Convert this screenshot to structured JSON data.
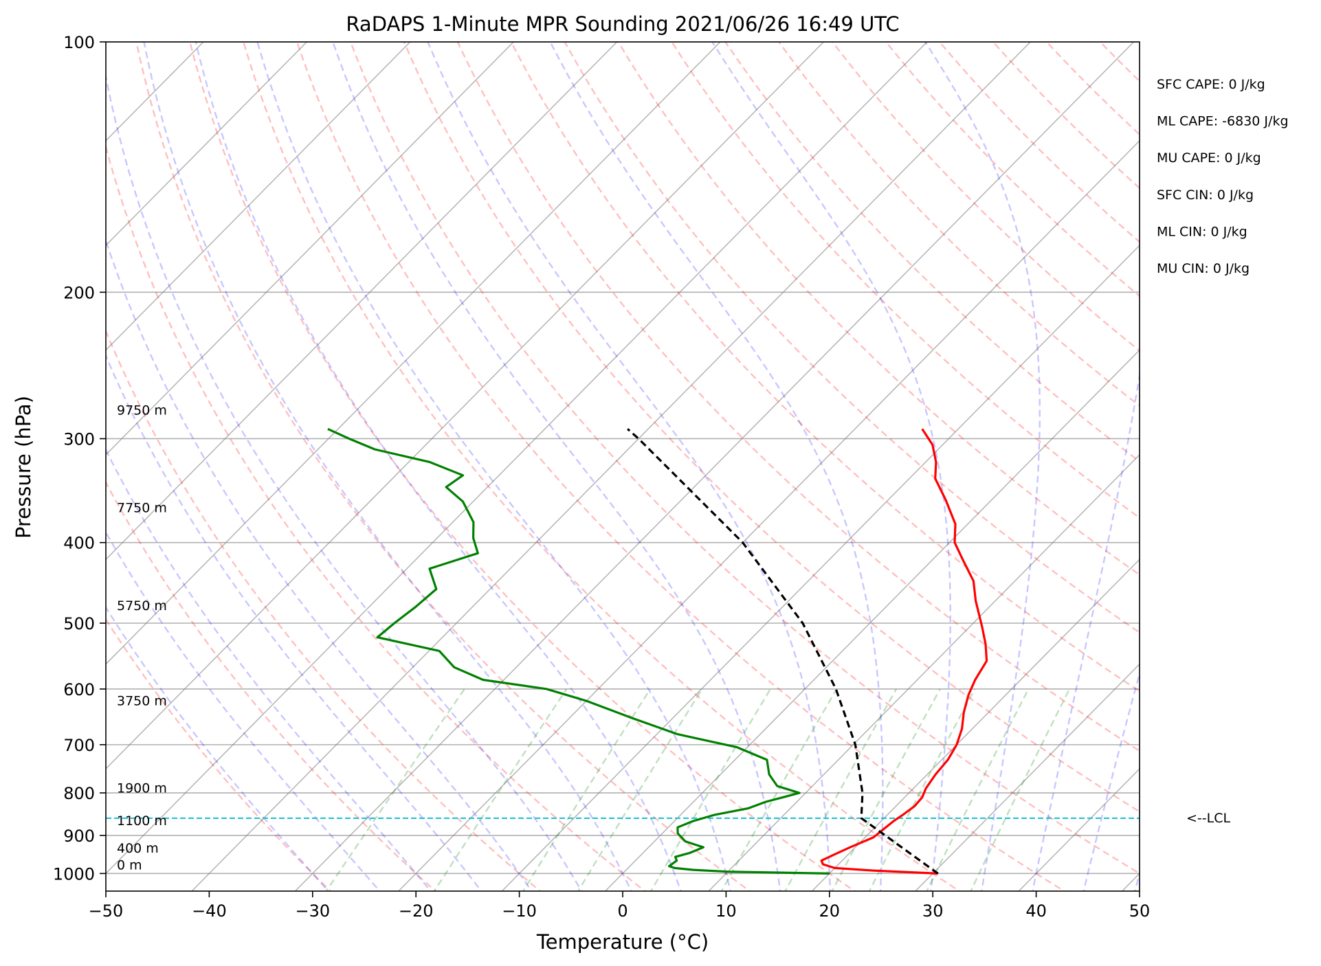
{
  "chart_data": {
    "type": "skew-t",
    "title": "RaDAPS 1-Minute MPR Sounding 2021/06/26 16:49 UTC",
    "xlabel": "Temperature (°C)",
    "ylabel": "Pressure (hPa)",
    "xlim": [
      -50,
      50
    ],
    "ylim": [
      1050,
      100
    ],
    "y_scale": "log",
    "grid": true,
    "x_ticks": [
      -50,
      -40,
      -30,
      -20,
      -10,
      0,
      10,
      20,
      30,
      40,
      50
    ],
    "x_tick_labels": [
      "−50",
      "−40",
      "−30",
      "−20",
      "−10",
      "0",
      "10",
      "20",
      "30",
      "40",
      "50"
    ],
    "y_ticks": [
      1000,
      900,
      800,
      700,
      600,
      500,
      400,
      300,
      200,
      100
    ],
    "y_tick_labels": [
      "1000",
      "900",
      "800",
      "700",
      "600",
      "500",
      "400",
      "300",
      "200",
      "100"
    ],
    "series": [
      {
        "role": "temperature",
        "color": "#ff0000",
        "values": [
          {
            "p": 1000,
            "t": 30.5
          },
          {
            "p": 992,
            "t": 24.0
          },
          {
            "p": 985,
            "t": 20.0
          },
          {
            "p": 975,
            "t": 18.5
          },
          {
            "p": 965,
            "t": 18.0
          },
          {
            "p": 950,
            "t": 18.6
          },
          {
            "p": 930,
            "t": 19.5
          },
          {
            "p": 905,
            "t": 20.8
          },
          {
            "p": 885,
            "t": 21.0
          },
          {
            "p": 865,
            "t": 21.2
          },
          {
            "p": 850,
            "t": 21.5
          },
          {
            "p": 830,
            "t": 21.8
          },
          {
            "p": 810,
            "t": 21.7
          },
          {
            "p": 790,
            "t": 21.2
          },
          {
            "p": 760,
            "t": 20.8
          },
          {
            "p": 730,
            "t": 20.6
          },
          {
            "p": 700,
            "t": 20.0
          },
          {
            "p": 670,
            "t": 19.0
          },
          {
            "p": 640,
            "t": 17.6
          },
          {
            "p": 610,
            "t": 16.4
          },
          {
            "p": 585,
            "t": 15.6
          },
          {
            "p": 555,
            "t": 14.9
          },
          {
            "p": 530,
            "t": 13.2
          },
          {
            "p": 505,
            "t": 11.2
          },
          {
            "p": 470,
            "t": 8.1
          },
          {
            "p": 445,
            "t": 6.0
          },
          {
            "p": 420,
            "t": 3.0
          },
          {
            "p": 400,
            "t": 0.5
          },
          {
            "p": 380,
            "t": -1.2
          },
          {
            "p": 355,
            "t": -4.5
          },
          {
            "p": 335,
            "t": -7.5
          },
          {
            "p": 320,
            "t": -9.0
          },
          {
            "p": 305,
            "t": -11.0
          },
          {
            "p": 292,
            "t": -13.5
          }
        ]
      },
      {
        "role": "dewpoint",
        "color": "#008000",
        "values": [
          {
            "p": 1000,
            "t": 20.0
          },
          {
            "p": 995,
            "t": 10.0
          },
          {
            "p": 990,
            "t": 6.5
          },
          {
            "p": 985,
            "t": 4.5
          },
          {
            "p": 980,
            "t": 3.8
          },
          {
            "p": 965,
            "t": 4.0
          },
          {
            "p": 955,
            "t": 3.5
          },
          {
            "p": 945,
            "t": 4.5
          },
          {
            "p": 930,
            "t": 5.3
          },
          {
            "p": 915,
            "t": 3.0
          },
          {
            "p": 895,
            "t": 1.5
          },
          {
            "p": 880,
            "t": 0.9
          },
          {
            "p": 865,
            "t": 1.8
          },
          {
            "p": 850,
            "t": 3.3
          },
          {
            "p": 835,
            "t": 5.9
          },
          {
            "p": 820,
            "t": 7.0
          },
          {
            "p": 800,
            "t": 9.4
          },
          {
            "p": 785,
            "t": 6.6
          },
          {
            "p": 760,
            "t": 4.7
          },
          {
            "p": 730,
            "t": 3.1
          },
          {
            "p": 705,
            "t": -1.0
          },
          {
            "p": 680,
            "t": -8.0
          },
          {
            "p": 650,
            "t": -14.0
          },
          {
            "p": 620,
            "t": -20.0
          },
          {
            "p": 600,
            "t": -25.0
          },
          {
            "p": 585,
            "t": -32.0
          },
          {
            "p": 565,
            "t": -36.0
          },
          {
            "p": 540,
            "t": -39.0
          },
          {
            "p": 520,
            "t": -46.3
          },
          {
            "p": 500,
            "t": -46.0
          },
          {
            "p": 478,
            "t": -45.5
          },
          {
            "p": 455,
            "t": -45.2
          },
          {
            "p": 430,
            "t": -47.8
          },
          {
            "p": 412,
            "t": -44.6
          },
          {
            "p": 395,
            "t": -46.5
          },
          {
            "p": 378,
            "t": -48.0
          },
          {
            "p": 357,
            "t": -51.0
          },
          {
            "p": 343,
            "t": -54.0
          },
          {
            "p": 332,
            "t": -53.5
          },
          {
            "p": 320,
            "t": -58.0
          },
          {
            "p": 309,
            "t": -64.5
          },
          {
            "p": 300,
            "t": -68.0
          },
          {
            "p": 292,
            "t": -71.0
          }
        ]
      },
      {
        "role": "parcel",
        "color": "#000000",
        "style": "dashed",
        "values": [
          {
            "p": 1000,
            "t": 30.5
          },
          {
            "p": 858,
            "t": 17.8
          },
          {
            "p": 800,
            "t": 15.5
          },
          {
            "p": 700,
            "t": 10.2
          },
          {
            "p": 600,
            "t": 3.0
          },
          {
            "p": 500,
            "t": -6.5
          },
          {
            "p": 400,
            "t": -20.0
          },
          {
            "p": 300,
            "t": -40.0
          },
          {
            "p": 292,
            "t": -42.0
          }
        ]
      }
    ],
    "height_labels": [
      {
        "label": "0 m",
        "p": 1000
      },
      {
        "label": "400 m",
        "p": 955
      },
      {
        "label": "1100 m",
        "p": 885
      },
      {
        "label": "1900 m",
        "p": 808
      },
      {
        "label": "3750 m",
        "p": 635
      },
      {
        "label": "5750 m",
        "p": 488
      },
      {
        "label": "7750 m",
        "p": 372
      },
      {
        "label": "9750 m",
        "p": 284
      }
    ],
    "lcl": {
      "p": 858,
      "label": "<--LCL",
      "color": "#17becf"
    },
    "indices": [
      "SFC CAPE: 0 J/kg",
      "ML CAPE: -6830 J/kg",
      "MU CAPE: 0 J/kg",
      "SFC CIN: 0 J/kg",
      "ML CIN: 0 J/kg",
      "MU CIN: 0 J/kg"
    ],
    "reference_lines": {
      "dry_adiabats": "#ff0000",
      "moist_adiabats": "#0000ff",
      "mixing_ratio": "#008000",
      "isotherms": "#808080"
    }
  }
}
